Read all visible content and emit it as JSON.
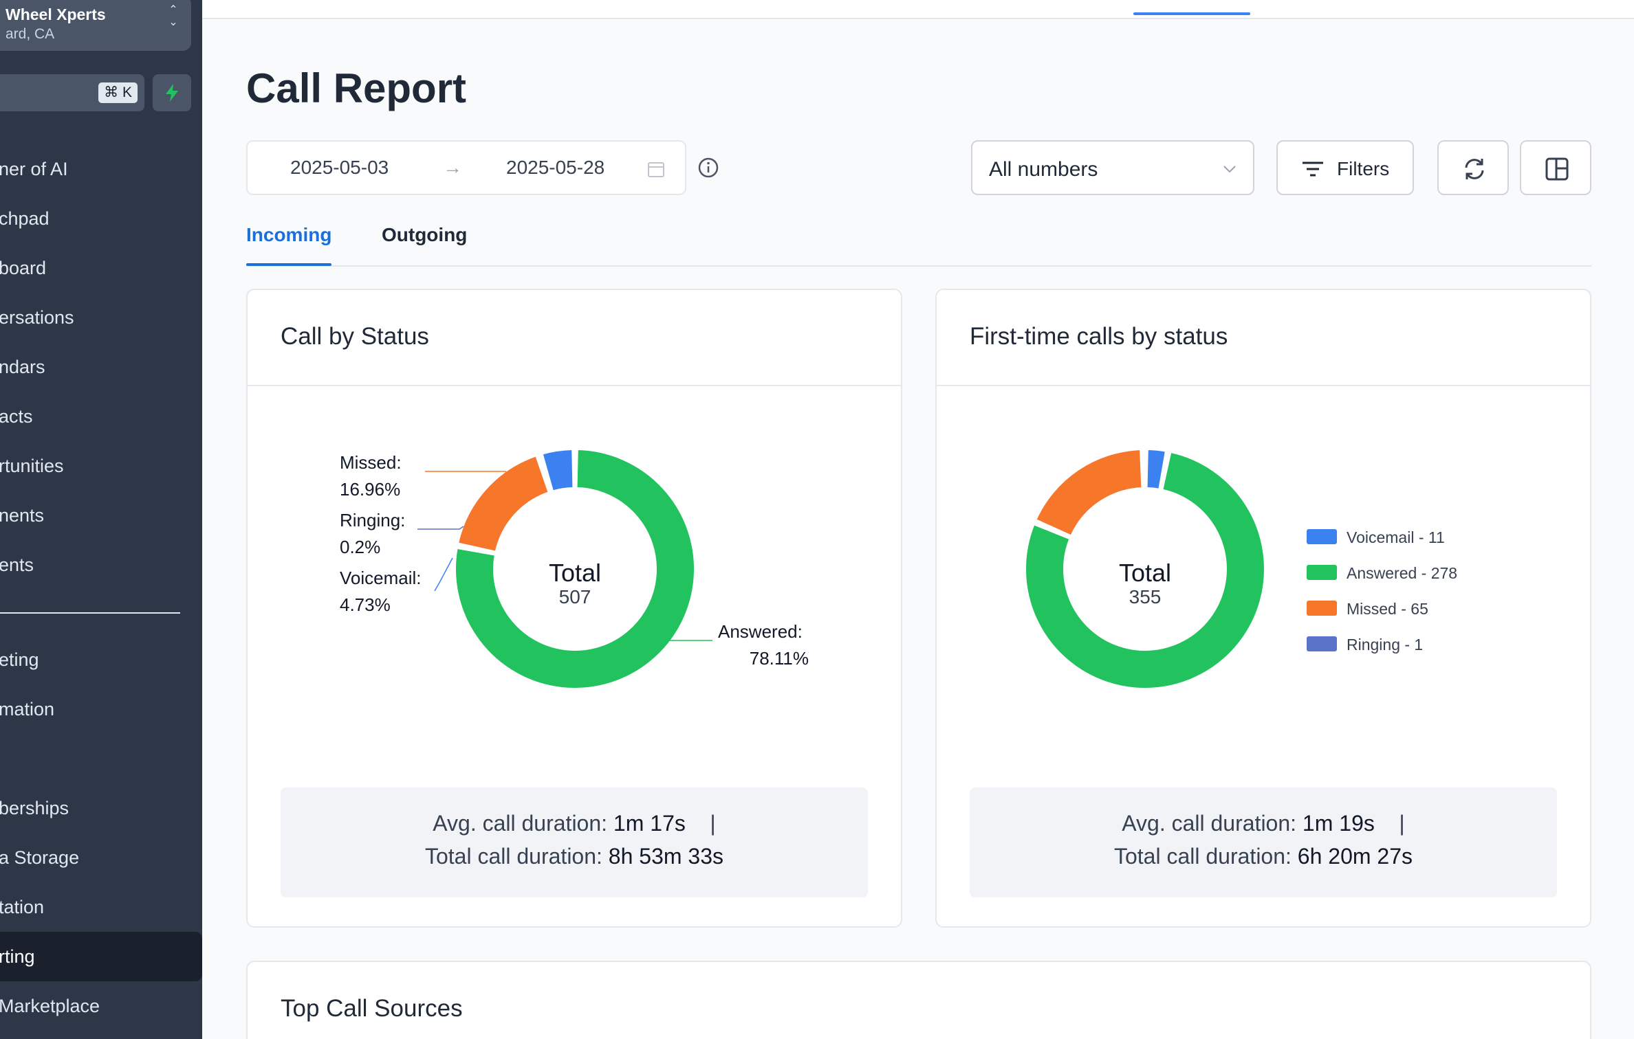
{
  "sidebar": {
    "location_name": "Wheel Xperts",
    "location_sub": "ard, CA",
    "search_shortcut": "⌘ K",
    "items": [
      {
        "label": "ner of AI"
      },
      {
        "label": "chpad"
      },
      {
        "label": "board"
      },
      {
        "label": "ersations"
      },
      {
        "label": "ndars"
      },
      {
        "label": "acts"
      },
      {
        "label": "rtunities"
      },
      {
        "label": "nents"
      },
      {
        "label": "ents"
      },
      {
        "label": "eting"
      },
      {
        "label": "mation"
      },
      {
        "label": "berships"
      },
      {
        "label": "a Storage"
      },
      {
        "label": "tation"
      },
      {
        "label": "rting"
      },
      {
        "label": "Marketplace"
      }
    ]
  },
  "page": {
    "title": "Call Report"
  },
  "date_range": {
    "start": "2025-05-03",
    "arrow": "→",
    "end": "2025-05-28"
  },
  "toolbar": {
    "numbers_label": "All numbers",
    "filters_label": "Filters"
  },
  "tabs": [
    {
      "label": "Incoming"
    },
    {
      "label": "Outgoing"
    }
  ],
  "colors": {
    "answered": "#22c35e",
    "missed": "#f6762a",
    "voicemail": "#3b82f0",
    "ringing": "#5a72c8",
    "accent": "#1d6fd8"
  },
  "chart_data": [
    {
      "type": "pie",
      "title": "Call by Status",
      "center_label": "Total",
      "center_value": "507",
      "categories": [
        "Answered",
        "Missed",
        "Ringing",
        "Voicemail"
      ],
      "values": [
        78.11,
        16.96,
        0.2,
        4.73
      ],
      "labels": [
        {
          "name": "Missed:",
          "value": "16.96%"
        },
        {
          "name": "Ringing:",
          "value": "0.2%"
        },
        {
          "name": "Voicemail:",
          "value": "4.73%"
        },
        {
          "name": "Answered:",
          "value": "78.11%"
        }
      ],
      "stats": {
        "avg_label": "Avg. call duration:",
        "avg_value": "1m 17s",
        "total_label": "Total call duration:",
        "total_value": "8h 53m 33s"
      }
    },
    {
      "type": "pie",
      "title": "First-time calls by status",
      "center_label": "Total",
      "center_value": "355",
      "categories": [
        "Voicemail",
        "Answered",
        "Missed",
        "Ringing"
      ],
      "values": [
        11,
        278,
        65,
        1
      ],
      "legend": [
        {
          "label": "Voicemail - 11"
        },
        {
          "label": "Answered - 278"
        },
        {
          "label": "Missed - 65"
        },
        {
          "label": "Ringing - 1"
        }
      ],
      "stats": {
        "avg_label": "Avg. call duration:",
        "avg_value": "1m 19s",
        "total_label": "Total call duration:",
        "total_value": "6h 20m 27s"
      }
    }
  ],
  "sources": {
    "title": "Top Call Sources"
  }
}
